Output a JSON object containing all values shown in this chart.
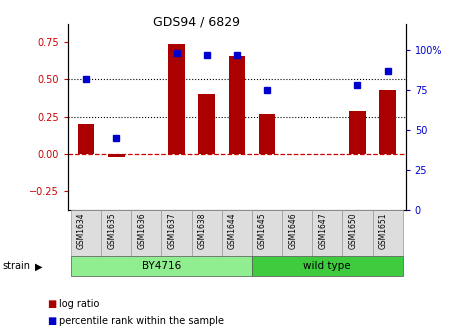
{
  "title": "GDS94 / 6829",
  "samples": [
    "GSM1634",
    "GSM1635",
    "GSM1636",
    "GSM1637",
    "GSM1638",
    "GSM1644",
    "GSM1645",
    "GSM1646",
    "GSM1647",
    "GSM1650",
    "GSM1651"
  ],
  "log_ratio": [
    0.2,
    -0.02,
    0.0,
    0.74,
    0.4,
    0.66,
    0.27,
    0.0,
    0.0,
    0.29,
    0.43
  ],
  "percentile_rank": [
    82,
    45,
    null,
    98,
    97,
    97,
    75,
    null,
    null,
    78,
    87
  ],
  "groups": [
    {
      "label": "BY4716",
      "start": 0,
      "end": 5,
      "color": "#90EE90"
    },
    {
      "label": "wild type",
      "start": 6,
      "end": 10,
      "color": "#3ECC3E"
    }
  ],
  "bar_color": "#AA0000",
  "dot_color": "#0000CC",
  "ylim_left": [
    -0.375,
    0.875
  ],
  "ylim_right": [
    0,
    116.67
  ],
  "yticks_left": [
    -0.25,
    0.0,
    0.25,
    0.5,
    0.75
  ],
  "yticks_right": [
    0,
    25,
    50,
    75,
    100
  ],
  "hlines": [
    0.25,
    0.5
  ],
  "zero_line_color": "#CC0000",
  "hline_color": "#000000",
  "background_color": "#ffffff",
  "plot_bg_color": "#ffffff",
  "strain_label": "strain",
  "legend_items": [
    "log ratio",
    "percentile rank within the sample"
  ],
  "title_color": "#000000",
  "left_tick_color": "#CC0000",
  "right_tick_color": "#0000CC"
}
